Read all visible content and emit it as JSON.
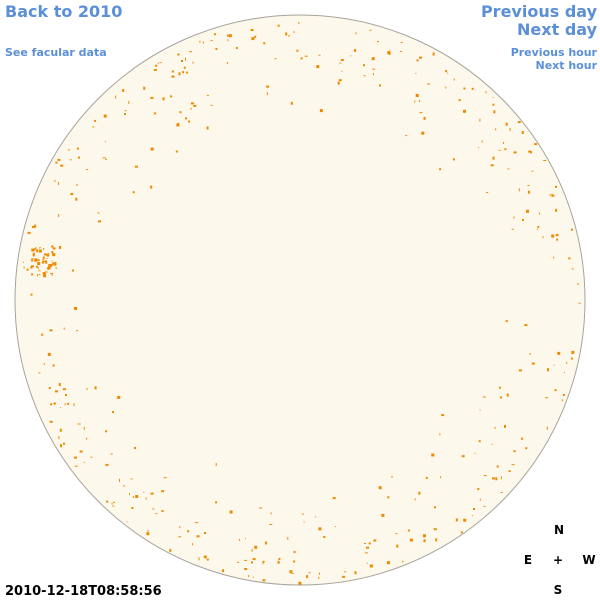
{
  "links": {
    "back": "Back to 2010",
    "facular": "See facular data",
    "previous_day": "Previous day",
    "next_day": "Next day",
    "previous_hour": "Previous hour",
    "next_hour": "Next hour"
  },
  "compass": {
    "north": "N",
    "east": "E",
    "center": "+",
    "west": "W",
    "south": "S"
  },
  "timestamp": "2010-12-18T08:58:56"
}
